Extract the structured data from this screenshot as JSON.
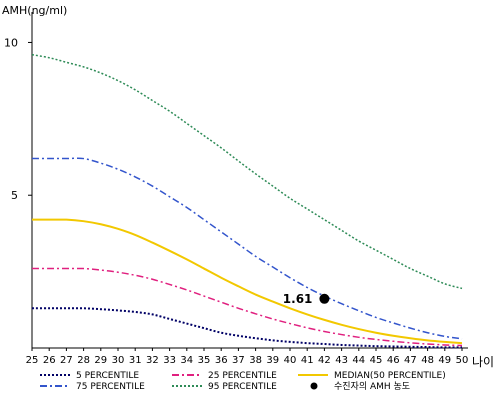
{
  "chart_data": {
    "type": "line",
    "ylabel": "AMH(ng/ml)",
    "xlabel": "나이",
    "xlim": [
      25,
      50
    ],
    "ylim": [
      0,
      10.8
    ],
    "x_ticks": [
      "25",
      "26",
      "27",
      "28",
      "29",
      "30",
      "31",
      "32",
      "33",
      "34",
      "35",
      "36",
      "37",
      "38",
      "39",
      "40",
      "41",
      "42",
      "43",
      "44",
      "45",
      "46",
      "47",
      "48",
      "49",
      "50"
    ],
    "y_ticks": [
      {
        "value": 5,
        "label": "5"
      },
      {
        "value": 10,
        "label": "10"
      }
    ],
    "x": [
      25,
      26,
      27,
      28,
      29,
      30,
      31,
      32,
      33,
      34,
      35,
      36,
      37,
      38,
      39,
      40,
      41,
      42,
      43,
      44,
      45,
      46,
      47,
      48,
      49,
      50
    ],
    "series": [
      {
        "name": "5 PERCENTILE",
        "color": "#000066",
        "dash": "2,2",
        "width": 2,
        "values": [
          1.3,
          1.3,
          1.3,
          1.3,
          1.27,
          1.23,
          1.18,
          1.1,
          0.95,
          0.8,
          0.65,
          0.5,
          0.4,
          0.32,
          0.25,
          0.2,
          0.16,
          0.13,
          0.1,
          0.08,
          0.06,
          0.05,
          0.04,
          0.03,
          0.02,
          0.02
        ]
      },
      {
        "name": "75 PERCENTILE",
        "color": "#3355cc",
        "dash": "7,3,2,3",
        "width": 1.5,
        "values": [
          6.2,
          6.2,
          6.2,
          6.2,
          6.05,
          5.85,
          5.6,
          5.3,
          4.95,
          4.6,
          4.2,
          3.8,
          3.4,
          3.0,
          2.65,
          2.3,
          1.98,
          1.7,
          1.45,
          1.22,
          1.0,
          0.82,
          0.65,
          0.5,
          0.38,
          0.3
        ]
      },
      {
        "name": "25 PERCENTILE",
        "color": "#e0207f",
        "dash": "7,3,2,3",
        "width": 1.5,
        "values": [
          2.6,
          2.6,
          2.6,
          2.6,
          2.55,
          2.48,
          2.38,
          2.25,
          2.08,
          1.9,
          1.7,
          1.5,
          1.3,
          1.12,
          0.95,
          0.8,
          0.66,
          0.54,
          0.44,
          0.35,
          0.28,
          0.22,
          0.17,
          0.13,
          0.1,
          0.08
        ]
      },
      {
        "name": "95 PERCENTILE",
        "color": "#2e8b57",
        "dash": "2,2",
        "width": 1.5,
        "values": [
          9.6,
          9.5,
          9.35,
          9.2,
          9.0,
          8.75,
          8.45,
          8.1,
          7.75,
          7.35,
          6.95,
          6.55,
          6.12,
          5.7,
          5.3,
          4.9,
          4.55,
          4.2,
          3.85,
          3.5,
          3.2,
          2.9,
          2.6,
          2.35,
          2.1,
          1.95
        ]
      },
      {
        "name": "MEDIAN(50 PERCENTILE)",
        "color": "#f2c800",
        "dash": "",
        "width": 2,
        "values": [
          4.2,
          4.2,
          4.2,
          4.15,
          4.05,
          3.9,
          3.7,
          3.45,
          3.18,
          2.9,
          2.6,
          2.3,
          2.02,
          1.75,
          1.52,
          1.3,
          1.1,
          0.92,
          0.76,
          0.62,
          0.5,
          0.4,
          0.32,
          0.25,
          0.2,
          0.16
        ]
      }
    ],
    "marker": {
      "name": "수진자의 AMH 농도",
      "x": 42,
      "y": 1.61,
      "label": "1.61",
      "color": "#000000"
    },
    "legend_placement": "bottom",
    "legend": [
      {
        "label": "5 PERCENTILE",
        "color": "#000066",
        "dash": "2,2"
      },
      {
        "label": "25 PERCENTILE",
        "color": "#e0207f",
        "dash": "7,3,2,3"
      },
      {
        "label": "MEDIAN(50 PERCENTILE)",
        "color": "#f2c800",
        "dash": ""
      },
      {
        "label": "75 PERCENTILE",
        "color": "#3355cc",
        "dash": "7,3,2,3"
      },
      {
        "label": "95 PERCENTILE",
        "color": "#2e8b57",
        "dash": "2,2"
      },
      {
        "label": "수진자의 AMH 농도",
        "color": "#000000",
        "dash": "marker"
      }
    ],
    "grid": false
  }
}
